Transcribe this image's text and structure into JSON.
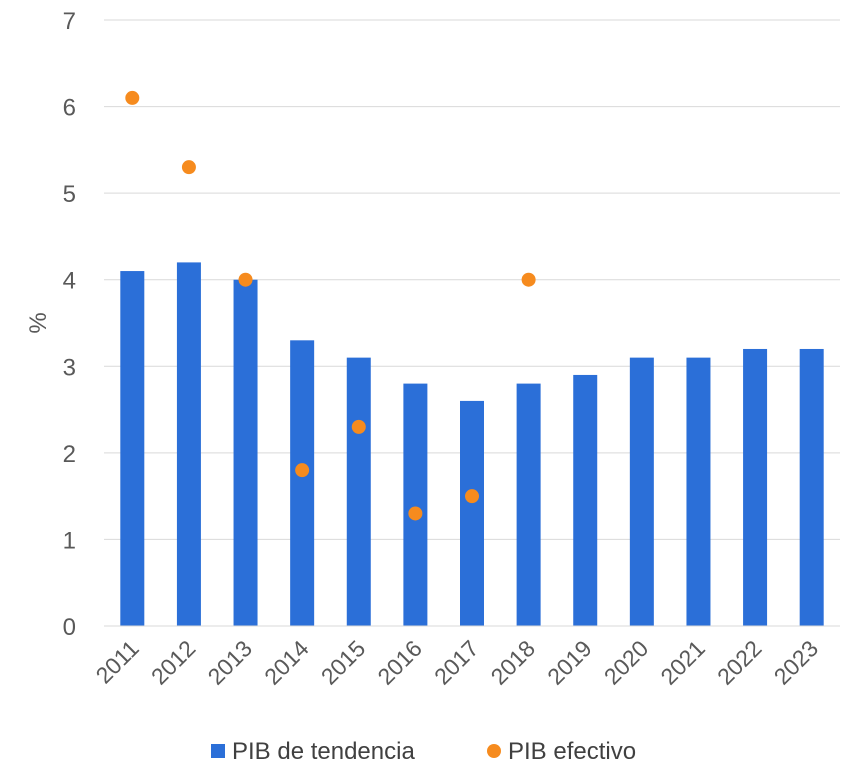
{
  "chart_data": {
    "type": "bar",
    "categories": [
      "2011",
      "2012",
      "2013",
      "2014",
      "2015",
      "2016",
      "2017",
      "2018",
      "2019",
      "2020",
      "2021",
      "2022",
      "2023"
    ],
    "series": [
      {
        "name": "PIB de tendencia",
        "type": "bar",
        "color": "#2B6FD8",
        "values": [
          4.1,
          4.2,
          4.0,
          3.3,
          3.1,
          2.8,
          2.6,
          2.8,
          2.9,
          3.1,
          3.1,
          3.2,
          3.2
        ]
      },
      {
        "name": "PIB efectivo",
        "type": "scatter",
        "color": "#F68B1E",
        "values": [
          6.1,
          5.3,
          4.0,
          1.8,
          2.3,
          1.3,
          1.5,
          4.0,
          null,
          null,
          null,
          null,
          null
        ]
      }
    ],
    "ylabel": "%",
    "ylim": [
      0,
      7
    ],
    "yticks": [
      "0",
      "1",
      "2",
      "3",
      "4",
      "5",
      "6",
      "7"
    ],
    "grid": true,
    "legend_position": "bottom"
  }
}
